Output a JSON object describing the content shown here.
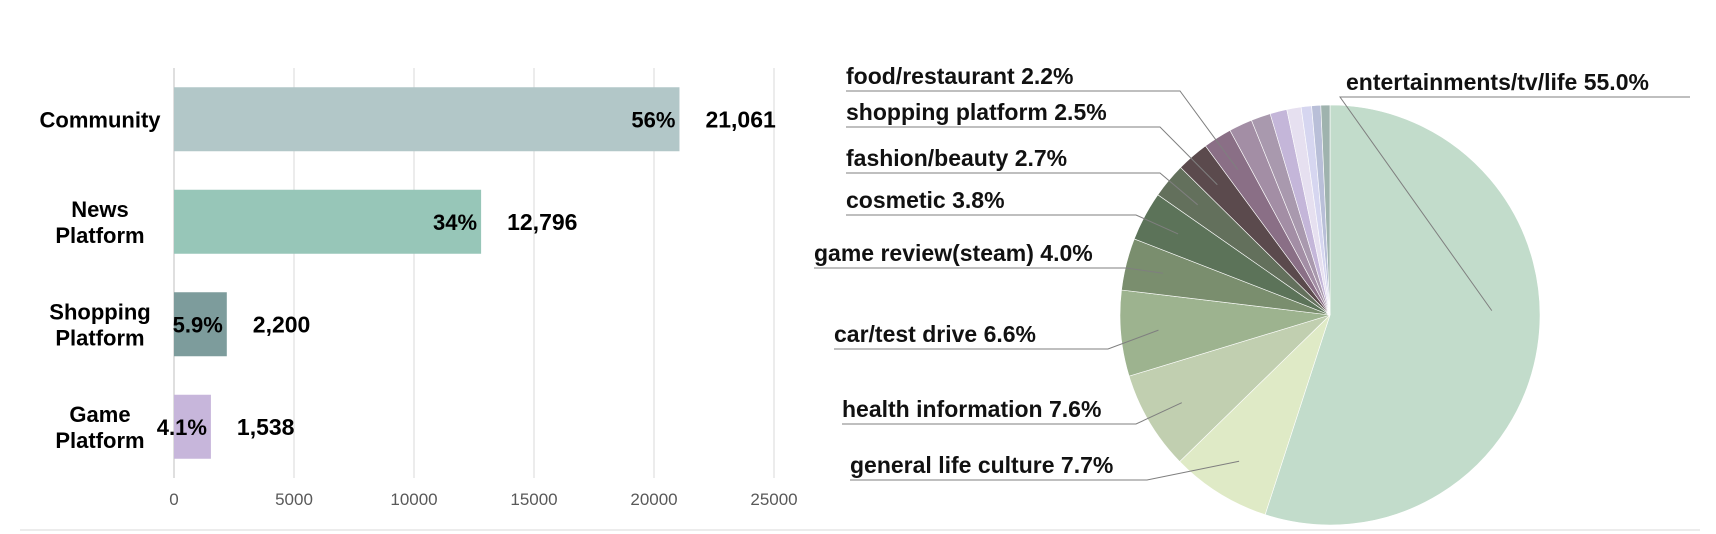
{
  "chart_data": [
    {
      "type": "bar",
      "orientation": "horizontal",
      "categories": [
        [
          "Community"
        ],
        [
          "News",
          "Platform"
        ],
        [
          "Shopping",
          "Platform"
        ],
        [
          "Game",
          "Platform"
        ]
      ],
      "values": [
        21061,
        12796,
        2200,
        1538
      ],
      "value_labels": [
        "21,061",
        "12,796",
        "2,200",
        "1,538"
      ],
      "percent_labels": [
        "56%",
        "34%",
        "5.9%",
        "4.1%"
      ],
      "colors": [
        "#b2c7c8",
        "#97c6b8",
        "#7d9c9c",
        "#c7b6db"
      ],
      "xlim": [
        0,
        25000
      ],
      "xticks": [
        "0",
        "5000",
        "10000",
        "15000",
        "20000",
        "25000"
      ],
      "grid": true,
      "title": "",
      "xlabel": "",
      "ylabel": ""
    },
    {
      "type": "pie",
      "slices": [
        {
          "label": "entertainments/tv/life 55.0%",
          "value": 55.0,
          "color": "#c2dccb",
          "labeled": true
        },
        {
          "label": "general life culture 7.7%",
          "value": 7.7,
          "color": "#dfeac6",
          "labeled": true
        },
        {
          "label": "health information 7.6%",
          "value": 7.6,
          "color": "#c1cfb0",
          "labeled": true
        },
        {
          "label": "car/test drive 6.6%",
          "value": 6.6,
          "color": "#9db38f",
          "labeled": true
        },
        {
          "label": "game review(steam) 4.0%",
          "value": 4.0,
          "color": "#7a8e6e",
          "labeled": true
        },
        {
          "label": "cosmetic 3.8%",
          "value": 3.8,
          "color": "#5c7359",
          "labeled": true
        },
        {
          "label": "fashion/beauty 2.7%",
          "value": 2.7,
          "color": "#63705c",
          "labeled": true
        },
        {
          "label": "shopping platform 2.5%",
          "value": 2.5,
          "color": "#5b4a4d",
          "labeled": true
        },
        {
          "label": "food/restaurant 2.2%",
          "value": 2.2,
          "color": "#8a6f86",
          "labeled": true
        },
        {
          "label": "",
          "value": 1.8,
          "color": "#a38ea5",
          "labeled": false
        },
        {
          "label": "",
          "value": 1.5,
          "color": "#a999ae",
          "labeled": false
        },
        {
          "label": "",
          "value": 1.3,
          "color": "#c4b6d9",
          "labeled": false
        },
        {
          "label": "",
          "value": 1.1,
          "color": "#e6e0f0",
          "labeled": false
        },
        {
          "label": "",
          "value": 0.8,
          "color": "#d6d6f0",
          "labeled": false
        },
        {
          "label": "",
          "value": 0.7,
          "color": "#b9bfd8",
          "labeled": false
        },
        {
          "label": "",
          "value": 0.7,
          "color": "#9fb3ae",
          "labeled": false
        }
      ],
      "title": ""
    }
  ]
}
